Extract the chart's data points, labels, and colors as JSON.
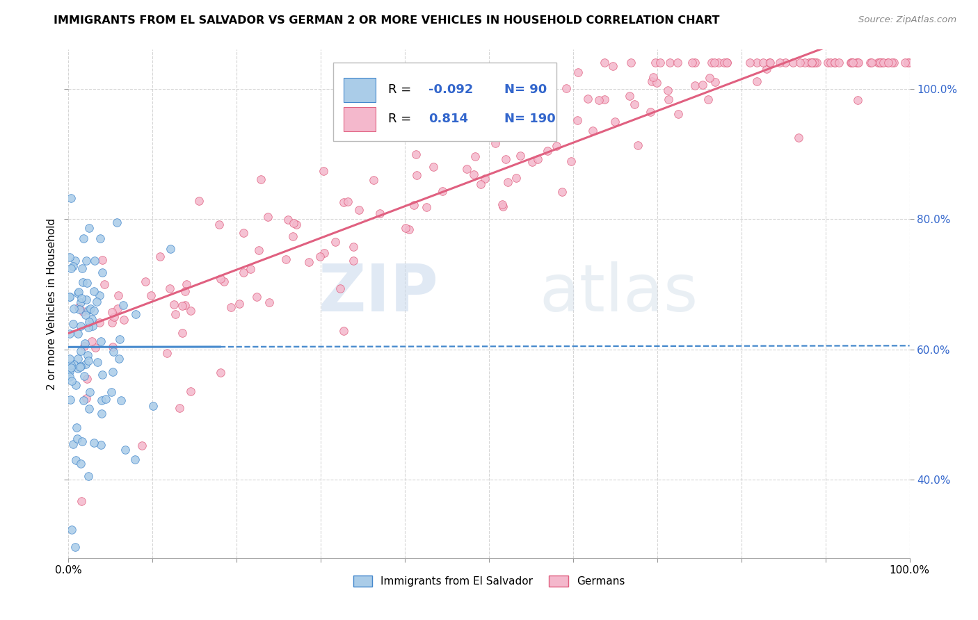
{
  "title": "IMMIGRANTS FROM EL SALVADOR VS GERMAN 2 OR MORE VEHICLES IN HOUSEHOLD CORRELATION CHART",
  "source": "Source: ZipAtlas.com",
  "ylabel": "2 or more Vehicles in Household",
  "xlim": [
    0.0,
    1.0
  ],
  "ylim": [
    0.28,
    1.06
  ],
  "ytick_positions": [
    0.4,
    0.6,
    0.8,
    1.0
  ],
  "legend_labels": [
    "Immigrants from El Salvador",
    "Germans"
  ],
  "r_salvador": -0.092,
  "n_salvador": 90,
  "r_german": 0.814,
  "n_german": 190,
  "color_salvador": "#aacce8",
  "color_german": "#f4b8cc",
  "color_salvador_line": "#4488cc",
  "color_german_line": "#e06080",
  "color_r_value": "#3366cc",
  "watermark_zip": "ZIP",
  "watermark_atlas": "atlas",
  "background_color": "#ffffff",
  "grid_color": "#cccccc",
  "seed": 1234
}
